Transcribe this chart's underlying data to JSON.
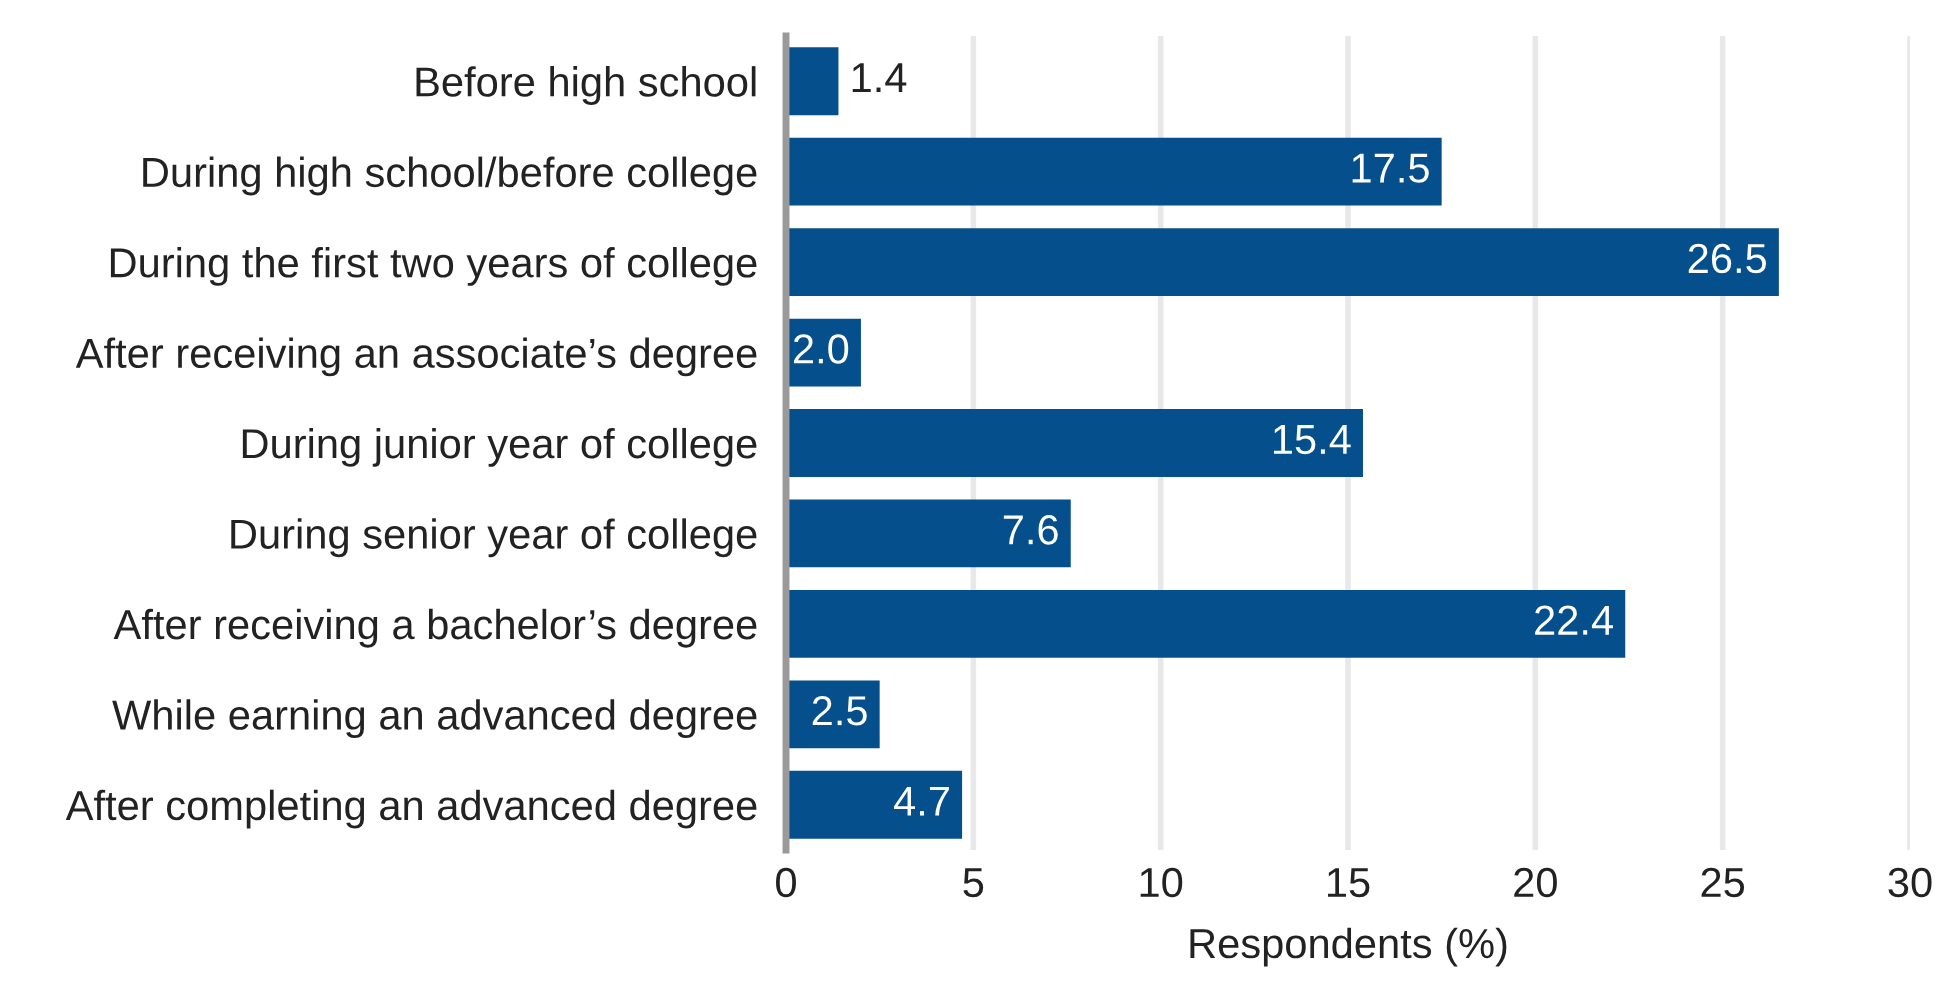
{
  "chart_data": {
    "type": "bar",
    "orientation": "horizontal",
    "categories": [
      "Before high school",
      "During high school/before college",
      "During the first two years of college",
      "After receiving an associate’s degree",
      "During junior year of college",
      "During senior year of college",
      "After receiving a bachelor’s degree",
      "While earning an advanced degree",
      "After completing an advanced degree"
    ],
    "values": [
      1.4,
      17.5,
      26.5,
      2.0,
      15.4,
      7.6,
      22.4,
      2.5,
      4.7
    ],
    "value_labels": [
      "1.4",
      "17.5",
      "26.5",
      "2.0",
      "15.4",
      "7.6",
      "22.4",
      "2.5",
      "4.7"
    ],
    "color": "#054f8c",
    "xlim": [
      0,
      30
    ],
    "xticks": [
      0,
      5,
      10,
      15,
      20,
      25,
      30
    ],
    "xlabel": "Respondents (%)",
    "grid": "x"
  }
}
